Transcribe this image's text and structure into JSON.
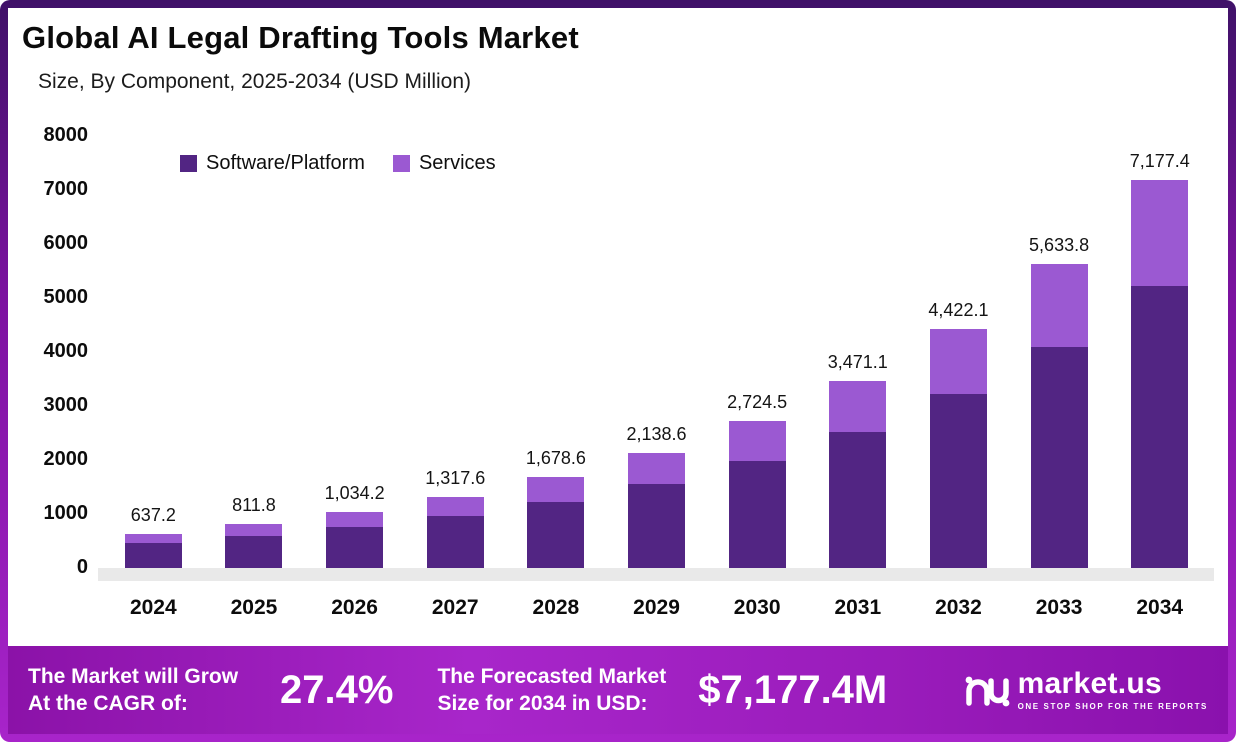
{
  "header": {
    "title": "Global AI Legal Drafting Tools Market",
    "subtitle": "Size, By Component, 2025-2034 (USD Million)"
  },
  "chart_data": {
    "type": "bar",
    "stacked": true,
    "title": "Global AI Legal Drafting Tools Market",
    "subtitle": "Size, By Component, 2025-2034 (USD Million)",
    "categories": [
      "2024",
      "2025",
      "2026",
      "2027",
      "2028",
      "2029",
      "2030",
      "2031",
      "2032",
      "2033",
      "2034"
    ],
    "series": [
      {
        "name": "Software/Platform",
        "color": "#522583",
        "values": [
          464.0,
          591.0,
          753.0,
          959.0,
          1222.0,
          1557.0,
          1983.0,
          2527.0,
          3219.0,
          4101.0,
          5225.0
        ]
      },
      {
        "name": "Services",
        "color": "#9b59d2",
        "values": [
          173.2,
          220.8,
          281.2,
          358.6,
          456.6,
          581.6,
          741.5,
          944.1,
          1203.1,
          1532.8,
          1952.4
        ]
      }
    ],
    "totals": [
      637.2,
      811.8,
      1034.2,
      1317.6,
      1678.6,
      2138.6,
      2724.5,
      3471.1,
      4422.1,
      5633.8,
      7177.4
    ],
    "totals_labels": [
      "637.2",
      "811.8",
      "1,034.2",
      "1,317.6",
      "1,678.6",
      "2,138.6",
      "2,724.5",
      "3,471.1",
      "4,422.1",
      "5,633.8",
      "7,177.4"
    ],
    "ylim": [
      0,
      8000
    ],
    "yticks": [
      0,
      1000,
      2000,
      3000,
      4000,
      5000,
      6000,
      7000,
      8000
    ],
    "xlabel": "",
    "ylabel": "",
    "grid": false,
    "legend_position": "top-left"
  },
  "banner": {
    "cagr_label_line1": "The Market will Grow",
    "cagr_label_line2": "At the CAGR of:",
    "cagr_value": "27.4%",
    "forecast_label_line1": "The Forecasted Market",
    "forecast_label_line2": "Size for 2034 in USD:",
    "forecast_value": "$7,177.4M",
    "logo_text": "market.us",
    "logo_tagline": "ONE STOP SHOP FOR THE REPORTS"
  }
}
